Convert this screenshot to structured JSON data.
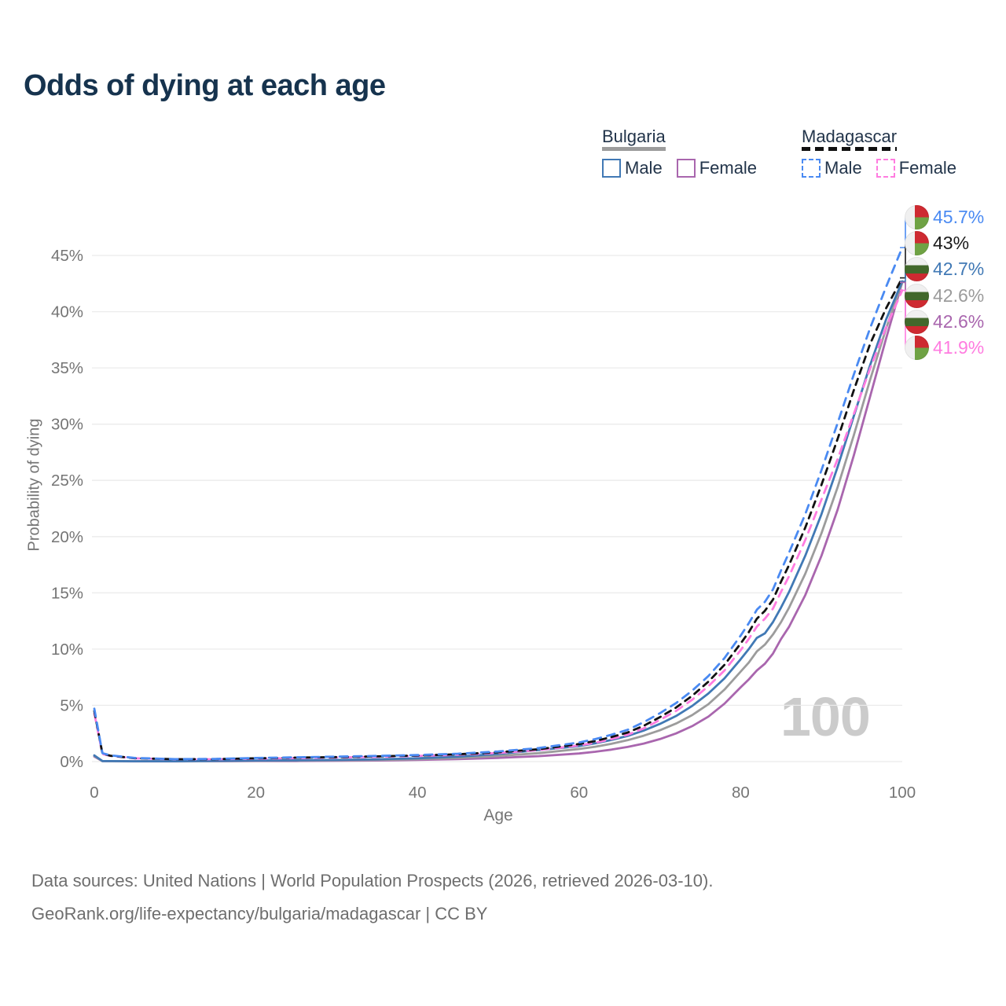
{
  "title": "Odds of dying at each age",
  "watermark": "100",
  "legend": {
    "groups": [
      {
        "country": "Bulgaria",
        "line_style": "solid",
        "line_color": "#9c9c9c",
        "items": [
          {
            "label": "Male",
            "color": "#4179b5",
            "style": "solid"
          },
          {
            "label": "Female",
            "color": "#a966ae",
            "style": "solid"
          }
        ]
      },
      {
        "country": "Madagascar",
        "line_style": "dashed",
        "line_color": "#111111",
        "items": [
          {
            "label": "Male",
            "color": "#4a8af2",
            "style": "dashed"
          },
          {
            "label": "Female",
            "color": "#ff7ce0",
            "style": "dashed"
          }
        ]
      }
    ]
  },
  "footer": {
    "line1": "Data sources: United Nations | World Population Prospects (2026, retrieved 2026-03-10).",
    "line2": "GeoRank.org/life-expectancy/bulgaria/madagascar | CC BY"
  },
  "chart_data": {
    "type": "line",
    "title": "Odds of dying at each age",
    "xlabel": "Age",
    "ylabel": "Probability of dying",
    "xlim": [
      0,
      100
    ],
    "ylim": [
      0,
      47
    ],
    "x_ticks": [
      0,
      20,
      40,
      60,
      80,
      100
    ],
    "y_ticks": [
      0,
      5,
      10,
      15,
      20,
      25,
      30,
      35,
      40,
      45
    ],
    "y_tick_suffix": "%",
    "grid": "horizontal",
    "legend_position": "top-right",
    "x": [
      0,
      1,
      2,
      5,
      10,
      15,
      20,
      25,
      30,
      35,
      40,
      45,
      50,
      55,
      60,
      62,
      64,
      66,
      68,
      70,
      72,
      74,
      76,
      78,
      80,
      81,
      82,
      83,
      84,
      85,
      86,
      88,
      90,
      92,
      94,
      96,
      98,
      100
    ],
    "series": [
      {
        "name": "Bulgaria Female",
        "country": "Bulgaria",
        "sex": "Female",
        "color": "#a966ae",
        "dashed": false,
        "values": [
          0.45,
          0.04,
          0.03,
          0.02,
          0.02,
          0.03,
          0.04,
          0.05,
          0.07,
          0.1,
          0.15,
          0.22,
          0.33,
          0.48,
          0.72,
          0.87,
          1.06,
          1.3,
          1.6,
          2.0,
          2.5,
          3.15,
          4.0,
          5.15,
          6.6,
          7.3,
          8.1,
          8.7,
          9.6,
          10.9,
          12.0,
          14.8,
          18.3,
          22.4,
          27.2,
          32.4,
          37.6,
          42.6
        ]
      },
      {
        "name": "Bulgaria Both sexes",
        "country": "Bulgaria",
        "sex": "Both sexes",
        "color": "#9c9c9c",
        "dashed": false,
        "values": [
          0.5,
          0.045,
          0.035,
          0.025,
          0.025,
          0.045,
          0.07,
          0.09,
          0.11,
          0.15,
          0.22,
          0.33,
          0.5,
          0.75,
          1.12,
          1.32,
          1.58,
          1.9,
          2.3,
          2.78,
          3.38,
          4.13,
          5.1,
          6.4,
          8.0,
          8.8,
          9.8,
          10.4,
          11.3,
          12.4,
          13.7,
          16.7,
          20.3,
          24.4,
          29.0,
          33.9,
          38.5,
          42.6
        ]
      },
      {
        "name": "Bulgaria Male",
        "country": "Bulgaria",
        "sex": "Male",
        "color": "#4179b5",
        "dashed": false,
        "values": [
          0.55,
          0.05,
          0.04,
          0.03,
          0.03,
          0.06,
          0.1,
          0.12,
          0.15,
          0.2,
          0.29,
          0.44,
          0.68,
          1.02,
          1.38,
          1.62,
          1.92,
          2.28,
          2.75,
          3.35,
          4.05,
          4.95,
          6.05,
          7.4,
          9.1,
          10.0,
          11.0,
          11.4,
          12.4,
          13.7,
          15.1,
          18.3,
          22.0,
          26.2,
          30.7,
          35.2,
          39.3,
          42.7
        ]
      },
      {
        "name": "Madagascar Female",
        "country": "Madagascar",
        "sex": "Female",
        "color": "#ff7ce0",
        "dashed": true,
        "values": [
          4.3,
          0.68,
          0.5,
          0.29,
          0.2,
          0.21,
          0.26,
          0.31,
          0.36,
          0.42,
          0.5,
          0.6,
          0.77,
          1.02,
          1.43,
          1.68,
          2.0,
          2.38,
          2.95,
          3.7,
          4.5,
          5.5,
          6.7,
          8.1,
          9.9,
          10.9,
          12.0,
          12.7,
          13.6,
          15.1,
          16.5,
          19.7,
          23.3,
          26.9,
          30.9,
          34.9,
          38.6,
          41.9
        ]
      },
      {
        "name": "Madagascar Both sexes",
        "country": "Madagascar",
        "sex": "Both sexes",
        "color": "#111111",
        "dashed": true,
        "values": [
          4.5,
          0.72,
          0.52,
          0.3,
          0.21,
          0.22,
          0.29,
          0.35,
          0.4,
          0.46,
          0.54,
          0.65,
          0.83,
          1.1,
          1.56,
          1.83,
          2.18,
          2.58,
          3.18,
          3.95,
          4.8,
          5.85,
          7.1,
          8.6,
          10.5,
          11.5,
          12.7,
          13.4,
          14.4,
          16.0,
          17.5,
          20.8,
          24.6,
          28.7,
          33.0,
          37.1,
          40.3,
          43.0
        ]
      },
      {
        "name": "Madagascar Male",
        "country": "Madagascar",
        "sex": "Male",
        "color": "#4a8af2",
        "dashed": true,
        "values": [
          4.7,
          0.75,
          0.55,
          0.32,
          0.22,
          0.24,
          0.32,
          0.38,
          0.44,
          0.5,
          0.58,
          0.7,
          0.9,
          1.2,
          1.7,
          2.0,
          2.38,
          2.82,
          3.5,
          4.3,
          5.2,
          6.3,
          7.6,
          9.2,
          11.2,
          12.3,
          13.5,
          14.2,
          15.3,
          17.0,
          18.6,
          22.0,
          25.9,
          30.1,
          34.4,
          38.5,
          42.2,
          45.7
        ]
      }
    ],
    "end_labels": [
      {
        "text": "45.7%",
        "value": 45.7,
        "series": "Madagascar Male",
        "flag": "madagascar",
        "color": "#4a8af2"
      },
      {
        "text": "43%",
        "value": 43.0,
        "series": "Madagascar Both sexes",
        "flag": "madagascar",
        "color": "#1a1a1a"
      },
      {
        "text": "42.7%",
        "value": 42.7,
        "series": "Bulgaria Male",
        "flag": "bulgaria",
        "color": "#4179b5"
      },
      {
        "text": "42.6%",
        "value": 42.6,
        "series": "Bulgaria Both sexes",
        "flag": "bulgaria",
        "color": "#9b9b9b"
      },
      {
        "text": "42.6%",
        "value": 42.6,
        "series": "Bulgaria Female",
        "flag": "bulgaria",
        "color": "#a966ae"
      },
      {
        "text": "41.9%",
        "value": 41.9,
        "series": "Madagascar Female",
        "flag": "madagascar",
        "color": "#ff7ce0"
      }
    ]
  }
}
